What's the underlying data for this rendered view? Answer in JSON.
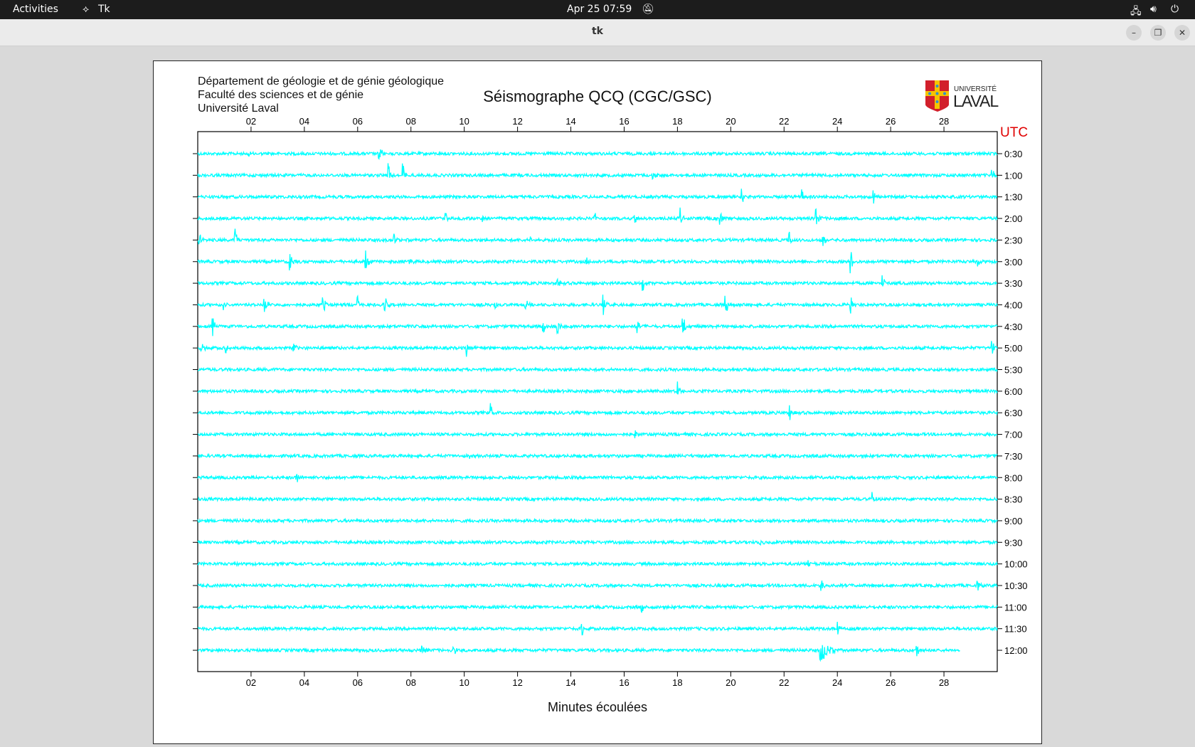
{
  "topbar": {
    "activities": "Activities",
    "app_name": "Tk",
    "app_icon": "tk-feather-icon",
    "clock": "Apr 25  07:59",
    "icons": [
      "bell-off-icon",
      "network-icon",
      "volume-icon",
      "power-icon"
    ]
  },
  "window": {
    "title": "tk",
    "buttons": [
      "minimize",
      "maximize",
      "close"
    ]
  },
  "header": {
    "lines": [
      "Département de géologie et de génie géologique",
      "Faculté des sciences et de génie",
      "Université Laval"
    ],
    "logo_text_top": "UNIVERSITÉ",
    "logo_text_bottom": "LAVAL"
  },
  "chart_data": {
    "type": "line",
    "title": "Séismographe QCQ (CGC/GSC)",
    "xlabel": "Minutes écoulées",
    "right_axis_title": "UTC",
    "xlim": [
      0,
      30
    ],
    "x_ticks": [
      "02",
      "04",
      "06",
      "08",
      "10",
      "12",
      "14",
      "16",
      "18",
      "20",
      "22",
      "24",
      "26",
      "28"
    ],
    "trace_color": "#00ffff",
    "rows": [
      "0:30",
      "1:00",
      "1:30",
      "2:00",
      "2:30",
      "3:00",
      "3:30",
      "4:00",
      "4:30",
      "5:00",
      "5:30",
      "6:00",
      "6:30",
      "7:00",
      "7:30",
      "8:00",
      "8:30",
      "9:00",
      "9:30",
      "10:00",
      "10:30",
      "11:00",
      "11:30",
      "12:00"
    ],
    "last_row_end_minute": 28.6,
    "events": [
      [
        [
          6.8,
          0.8
        ],
        [
          1.9,
          0.25
        ]
      ],
      [
        [
          7.15,
          0.75
        ],
        [
          7.7,
          0.8
        ],
        [
          17.07,
          0.5
        ],
        [
          29.8,
          0.7
        ]
      ],
      [
        [
          20.4,
          0.5
        ],
        [
          22.65,
          0.7
        ],
        [
          25.35,
          0.55
        ]
      ],
      [
        [
          9.3,
          0.5
        ],
        [
          10.7,
          0.65
        ],
        [
          14.9,
          0.45
        ],
        [
          16.4,
          0.45
        ],
        [
          18.1,
          0.6
        ],
        [
          19.6,
          0.7
        ],
        [
          23.2,
          0.75
        ]
      ],
      [
        [
          0.05,
          0.55
        ],
        [
          1.4,
          0.7
        ],
        [
          7.35,
          0.45
        ],
        [
          12.5,
          0.3
        ],
        [
          22.2,
          0.5
        ],
        [
          23.45,
          0.7
        ]
      ],
      [
        [
          3.46,
          0.7
        ],
        [
          6.3,
          0.65
        ],
        [
          7.95,
          0.25
        ],
        [
          14.6,
          0.25
        ],
        [
          24.5,
          0.8
        ],
        [
          29.25,
          0.8
        ]
      ],
      [
        [
          13.5,
          0.5
        ],
        [
          16.7,
          0.55
        ],
        [
          25.7,
          0.55
        ]
      ],
      [
        [
          0.94,
          0.4
        ],
        [
          2.5,
          0.7
        ],
        [
          4.7,
          0.6
        ],
        [
          6.0,
          0.5
        ],
        [
          7.0,
          0.7
        ],
        [
          11.15,
          0.3
        ],
        [
          12.3,
          0.35
        ],
        [
          15.2,
          0.85
        ],
        [
          19.8,
          0.65
        ],
        [
          24.5,
          0.65
        ]
      ],
      [
        [
          0.57,
          0.8
        ],
        [
          12.95,
          0.5
        ],
        [
          13.5,
          0.6
        ],
        [
          16.5,
          0.55
        ],
        [
          18.2,
          0.8
        ]
      ],
      [
        [
          0.1,
          0.6
        ],
        [
          1.06,
          0.55
        ],
        [
          3.6,
          0.35
        ],
        [
          10.07,
          0.7
        ],
        [
          29.8,
          0.55
        ]
      ],
      [],
      [
        [
          18.0,
          0.55
        ]
      ],
      [
        [
          11.0,
          0.5
        ],
        [
          22.2,
          0.65
        ]
      ],
      [
        [
          16.4,
          0.45
        ]
      ],
      [
        [
          10.2,
          0.15
        ]
      ],
      [
        [
          3.7,
          0.55
        ]
      ],
      [
        [
          25.3,
          0.45
        ]
      ],
      [],
      [
        [
          21.1,
          0.2
        ]
      ],
      [
        [
          1.5,
          0.35
        ],
        [
          22.9,
          0.45
        ]
      ],
      [
        [
          23.4,
          0.5
        ],
        [
          29.25,
          0.5
        ]
      ],
      [
        [
          16.65,
          0.45
        ]
      ],
      [
        [
          14.4,
          0.5
        ],
        [
          24.0,
          0.5
        ]
      ],
      [
        [
          8.4,
          0.4
        ],
        [
          9.6,
          0.4
        ],
        [
          23.35,
          0.9
        ],
        [
          26.97,
          0.45
        ]
      ]
    ]
  }
}
